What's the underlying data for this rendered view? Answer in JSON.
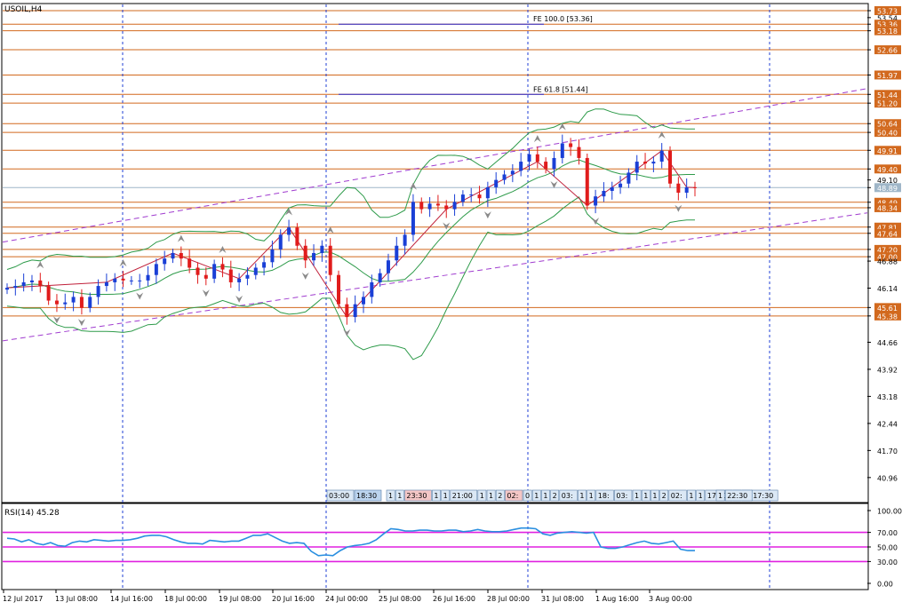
{
  "chart_data": [
    {
      "type": "candlestick",
      "title": "USOIL,H4",
      "ylim": [
        40.3,
        53.9
      ],
      "y_tick_labels": [
        "53.73",
        "53.54",
        "53.36",
        "53.18",
        "52.66",
        "51.97",
        "51.44",
        "51.20",
        "50.64",
        "50.40",
        "49.91",
        "49.40",
        "49.10",
        "48.89",
        "48.49",
        "48.34",
        "47.81",
        "47.64",
        "47.20",
        "47.00",
        "46.88",
        "46.14",
        "45.61",
        "45.38",
        "44.66",
        "43.92",
        "43.18",
        "42.44",
        "41.70",
        "40.96"
      ],
      "highlighted_levels": [
        "53.73",
        "53.36",
        "53.18",
        "52.66",
        "51.97",
        "51.44",
        "51.20",
        "50.64",
        "50.40",
        "49.91",
        "49.40",
        "48.89",
        "48.49",
        "48.34",
        "47.81",
        "47.64",
        "47.20",
        "47.00",
        "45.61",
        "45.38"
      ],
      "current_price": "48.89",
      "horizontal_levels": [
        53.73,
        53.36,
        53.18,
        52.66,
        51.97,
        51.44,
        51.2,
        50.64,
        50.4,
        49.91,
        49.4,
        48.89,
        48.49,
        48.34,
        47.81,
        47.64,
        47.2,
        47.0,
        45.61,
        45.38
      ],
      "fibonacci_labels": [
        {
          "text": "FE 100.0 [53.36]",
          "value": 53.36
        },
        {
          "text": "FE 61.8 [51.44]",
          "value": 51.44
        }
      ],
      "time_labels": [
        "03:00",
        "18:30",
        "1",
        "1",
        "23:30",
        "1",
        "1",
        "21:00",
        "1",
        "1",
        "2",
        "02:",
        "0",
        "1",
        "1",
        "2",
        "03:",
        "1",
        "1",
        "18:",
        "03:",
        "1",
        "1",
        "1",
        "2",
        "02:",
        "1",
        "1",
        "17:30",
        "1",
        "1",
        "17:30",
        "1",
        "22:30"
      ],
      "close_values": [
        46.15,
        46.2,
        46.3,
        46.35,
        46.2,
        45.8,
        45.7,
        45.75,
        45.9,
        45.6,
        45.9,
        46.2,
        46.3,
        46.4,
        46.35,
        46.35,
        46.35,
        46.5,
        46.8,
        46.95,
        47.1,
        46.95,
        46.7,
        46.5,
        46.4,
        46.8,
        46.65,
        46.3,
        46.4,
        46.5,
        46.7,
        46.85,
        47.2,
        47.6,
        47.8,
        47.3,
        46.9,
        47.1,
        47.3,
        46.5,
        45.7,
        45.35,
        45.7,
        45.9,
        46.3,
        46.55,
        46.9,
        47.3,
        47.6,
        48.5,
        48.3,
        48.45,
        48.4,
        48.3,
        48.5,
        48.7,
        48.7,
        48.6,
        48.9,
        49.1,
        49.25,
        49.35,
        49.6,
        49.8,
        49.6,
        49.4,
        49.7,
        50.1,
        50.0,
        49.7,
        48.4,
        48.65,
        48.8,
        48.9,
        49.0,
        49.3,
        49.6,
        49.55,
        49.6,
        49.9,
        49.0,
        48.75,
        48.9,
        48.89
      ],
      "x_tick_labels": [
        "12 Jul 2017",
        "13 Jul 08:00",
        "14 Jul 16:00",
        "18 Jul 00:00",
        "19 Jul 08:00",
        "20 Jul 16:00",
        "24 Jul 00:00",
        "25 Jul 08:00",
        "26 Jul 16:00",
        "28 Jul 00:00",
        "31 Jul 08:00",
        "1 Aug 16:00",
        "3 Aug 00:00"
      ]
    },
    {
      "type": "line",
      "title": "RSI(14) 45.28",
      "ylim": [
        0,
        100
      ],
      "y_tick_labels": [
        "100.00",
        "70.00",
        "50.00",
        "30.00",
        "0.00"
      ],
      "levels": [
        70,
        50,
        30
      ],
      "values": [
        62,
        61,
        57,
        60,
        55,
        53,
        56,
        52,
        51,
        56,
        58,
        57,
        60,
        59,
        58,
        59,
        59,
        60,
        62,
        65,
        66,
        66,
        64,
        60,
        57,
        55,
        55,
        54,
        59,
        58,
        57,
        58,
        58,
        62,
        66,
        66,
        68,
        63,
        58,
        55,
        56,
        55,
        44,
        38,
        39,
        38,
        45,
        50,
        52,
        53,
        55,
        60,
        68,
        75,
        74,
        72,
        72,
        73,
        73,
        72,
        72,
        73,
        73,
        71,
        72,
        74,
        72,
        71,
        71,
        72,
        74,
        76,
        76,
        75,
        68,
        66,
        69,
        70,
        71,
        70,
        69,
        70,
        50,
        48,
        48,
        50,
        53,
        56,
        58,
        55,
        54,
        56,
        58,
        47,
        45,
        45
      ]
    }
  ]
}
